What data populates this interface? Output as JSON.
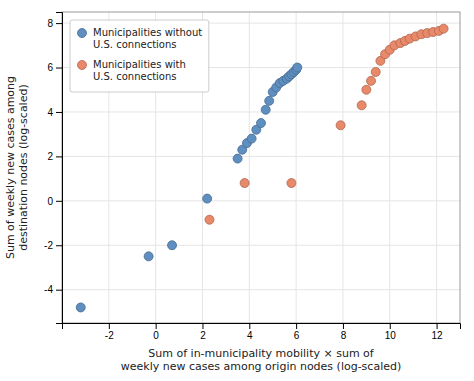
{
  "chart_data": {
    "type": "scatter",
    "xlabel": "Sum of in-municipality mobility × sum of\nweekly new cases among origin nodes (log-scaled)",
    "ylabel": "Sum of weekly new cases among\ndestination nodes (log-scaled)",
    "series": [
      {
        "name": "Municipalities without\nU.S. connections",
        "color": "#5e8fc0",
        "x": [
          -3.2,
          -0.3,
          0.7,
          2.2,
          3.5,
          3.7,
          3.9,
          4.1,
          4.3,
          4.5,
          4.7,
          4.85,
          5.0,
          5.15,
          5.3,
          5.45,
          5.6,
          5.7,
          5.8,
          5.9,
          6.0,
          6.05
        ],
        "values": [
          -4.8,
          -2.5,
          -2.0,
          0.1,
          1.9,
          2.3,
          2.6,
          2.8,
          3.2,
          3.5,
          4.1,
          4.5,
          4.9,
          5.1,
          5.3,
          5.4,
          5.5,
          5.6,
          5.7,
          5.8,
          5.9,
          6.0
        ]
      },
      {
        "name": "Municipalities with\nU.S. connections",
        "color": "#e8896a",
        "x": [
          2.3,
          3.8,
          5.8,
          7.9,
          8.8,
          9.0,
          9.2,
          9.4,
          9.6,
          9.8,
          10.0,
          10.2,
          10.45,
          10.65,
          10.85,
          11.1,
          11.35,
          11.6,
          11.85,
          12.1,
          12.3
        ],
        "values": [
          -0.85,
          0.8,
          0.8,
          3.4,
          4.3,
          5.0,
          5.4,
          5.8,
          6.3,
          6.6,
          6.8,
          7.0,
          7.1,
          7.2,
          7.3,
          7.4,
          7.5,
          7.55,
          7.6,
          7.65,
          7.75
        ]
      }
    ],
    "xlim": [
      -4.0,
      13.0
    ],
    "ylim": [
      -5.5,
      8.5
    ],
    "xticks": [
      -2,
      0,
      2,
      4,
      6,
      8,
      10,
      12
    ],
    "yticks": [
      -4,
      -2,
      0,
      2,
      4,
      6,
      8
    ],
    "grid": true,
    "legend": "upper left"
  }
}
